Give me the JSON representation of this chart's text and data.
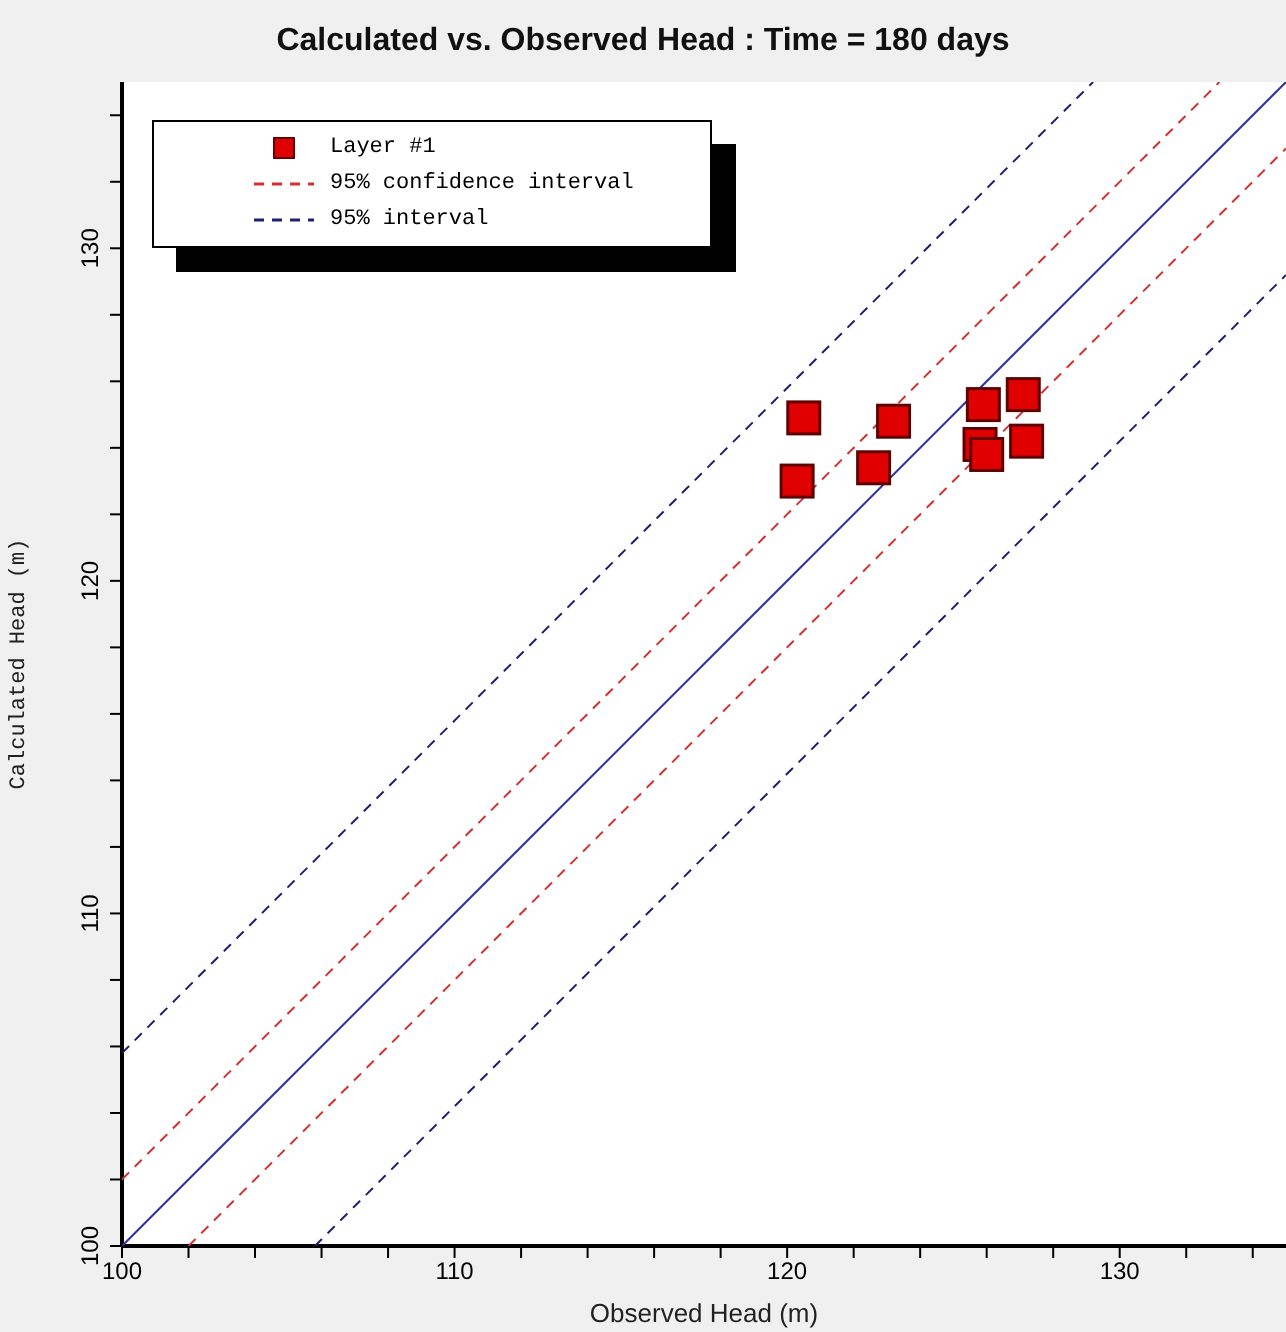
{
  "chart_data": {
    "type": "scatter",
    "title": "Calculated vs. Observed Head : Time = 180 days",
    "xlabel": "Observed Head (m)",
    "ylabel": "Calculated Head (m)",
    "xlim": [
      100,
      135
    ],
    "ylim": [
      100,
      135
    ],
    "xticks": [
      100,
      {
        "value": 102,
        "label": null
      },
      {
        "value": 104,
        "label": null
      },
      {
        "value": 106,
        "label": null
      },
      {
        "value": 108,
        "label": null
      },
      110,
      {
        "value": 112,
        "label": null
      },
      {
        "value": 114,
        "label": null
      },
      {
        "value": 116,
        "label": null
      },
      {
        "value": 118,
        "label": null
      },
      120,
      {
        "value": 122,
        "label": null
      },
      {
        "value": 124,
        "label": null
      },
      {
        "value": 126,
        "label": null
      },
      {
        "value": 128,
        "label": null
      },
      130,
      {
        "value": 132,
        "label": null
      },
      {
        "value": 134,
        "label": null
      }
    ],
    "yticks": [
      100,
      {
        "value": 102,
        "label": null
      },
      {
        "value": 104,
        "label": null
      },
      {
        "value": 106,
        "label": null
      },
      {
        "value": 108,
        "label": null
      },
      110,
      {
        "value": 112,
        "label": null
      },
      {
        "value": 114,
        "label": null
      },
      {
        "value": 116,
        "label": null
      },
      {
        "value": 118,
        "label": null
      },
      120,
      {
        "value": 122,
        "label": null
      },
      {
        "value": 124,
        "label": null
      },
      {
        "value": 126,
        "label": null
      },
      {
        "value": 128,
        "label": null
      },
      130,
      {
        "value": 132,
        "label": null
      },
      {
        "value": 134,
        "label": null
      }
    ],
    "grid": false,
    "legend": "top left",
    "marker": "square",
    "series": [
      {
        "name": "Layer #1",
        "color": "#e00000",
        "x": [
          120.5,
          120.3,
          123.2,
          122.6,
          125.9,
          127.1,
          125.8,
          126.0,
          127.2
        ],
        "values": [
          124.9,
          123.0,
          124.8,
          123.4,
          125.3,
          125.6,
          124.1,
          123.8,
          124.2
        ]
      },
      {
        "type": "line",
        "color": "#3030a0",
        "line_style": "solid",
        "marker": "none",
        "x": [
          100,
          135
        ],
        "values": [
          100,
          135
        ]
      },
      {
        "name": "95% confidence interval",
        "type": "line",
        "color": "#d03030",
        "line_style": "dashed",
        "marker": "none",
        "x": [
          100,
          133
        ],
        "values": [
          102,
          135
        ]
      },
      {
        "type": "line",
        "color": "#d03030",
        "line_style": "dashed",
        "marker": "none",
        "x": [
          102,
          135
        ],
        "values": [
          100,
          133
        ]
      },
      {
        "name": "95% interval",
        "type": "line",
        "color": "#202070",
        "line_style": "dashed",
        "marker": "none",
        "x": [
          100,
          129.2
        ],
        "values": [
          105.8,
          135
        ]
      },
      {
        "type": "line",
        "color": "#202070",
        "line_style": "dashed",
        "marker": "none",
        "x": [
          105.8,
          135
        ],
        "values": [
          100,
          129.2
        ]
      }
    ]
  }
}
